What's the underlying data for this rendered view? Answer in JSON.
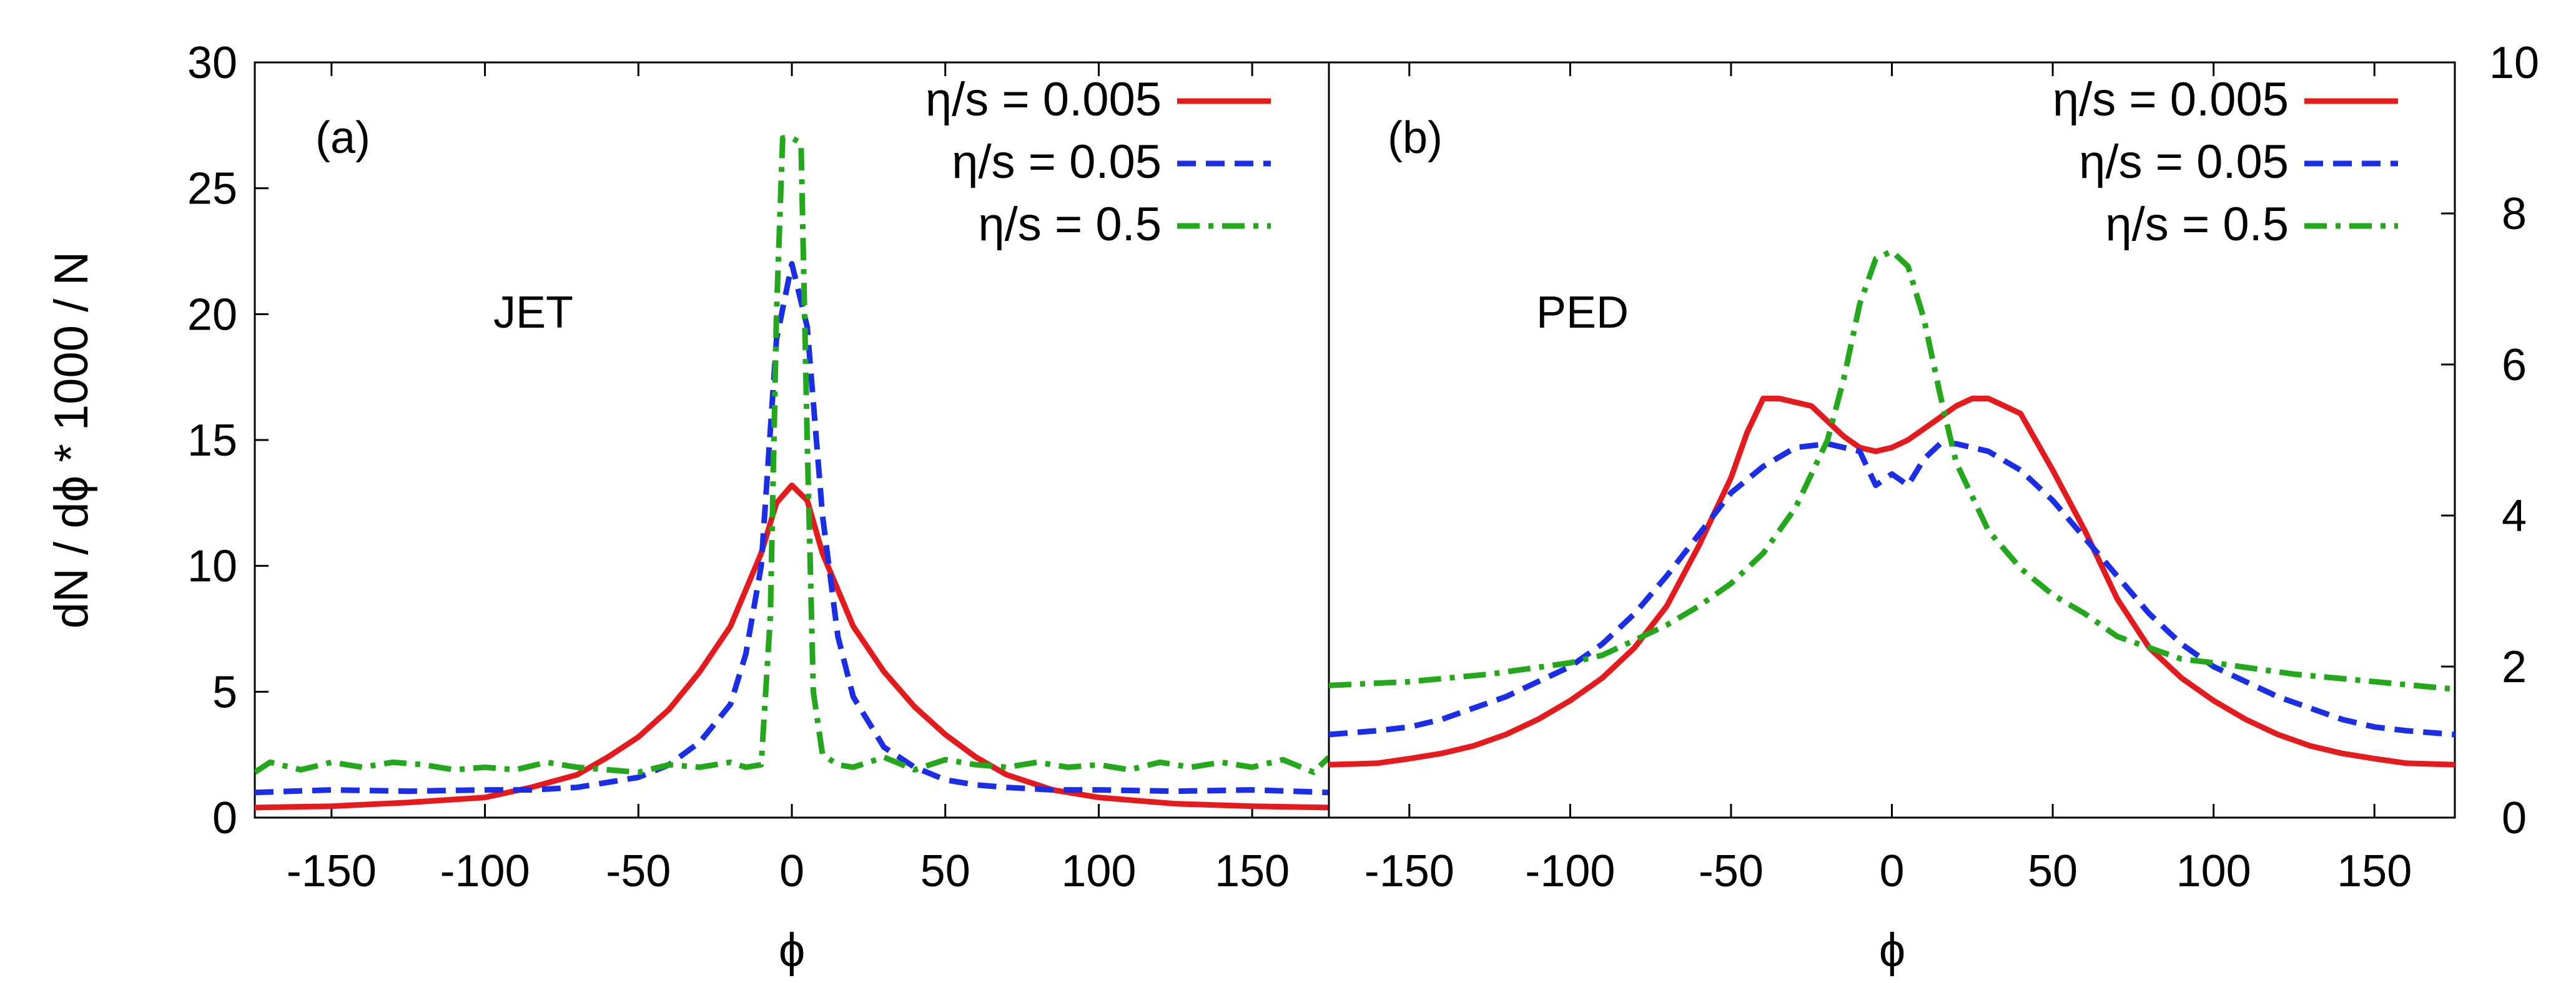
{
  "chart_data": [
    {
      "type": "line",
      "panel_label": "(a)",
      "annotation": "JET",
      "xlabel": "ϕ",
      "ylabel": "dN / dϕ * 1000 / N",
      "xlim": [
        -175,
        175
      ],
      "ylim": [
        0,
        30
      ],
      "xticks": [
        -150,
        -100,
        -50,
        0,
        50,
        100,
        150
      ],
      "xtick_labels": [
        "-150",
        "-100",
        "-50",
        "0",
        "50",
        "100",
        "150"
      ],
      "yticks": [
        0,
        5,
        10,
        15,
        20,
        25,
        30
      ],
      "ytick_labels": [
        "0",
        "5",
        "10",
        "15",
        "20",
        "25",
        "30"
      ],
      "legend_position": "top-right",
      "series": [
        {
          "name": "η/s = 0.005",
          "color": "#e41a1c",
          "dash": "solid",
          "x": [
            -175,
            -150,
            -125,
            -100,
            -85,
            -70,
            -60,
            -50,
            -40,
            -30,
            -20,
            -10,
            -5,
            0,
            5,
            10,
            20,
            30,
            40,
            50,
            60,
            70,
            85,
            100,
            125,
            150,
            175
          ],
          "y": [
            0.4,
            0.45,
            0.6,
            0.8,
            1.2,
            1.7,
            2.4,
            3.2,
            4.3,
            5.8,
            7.6,
            10.5,
            12.5,
            13.2,
            12.6,
            10.5,
            7.6,
            5.8,
            4.4,
            3.3,
            2.4,
            1.7,
            1.1,
            0.8,
            0.55,
            0.45,
            0.4
          ]
        },
        {
          "name": "η/s = 0.05",
          "color": "#1a2ee8",
          "dash": "dashed",
          "x": [
            -175,
            -150,
            -125,
            -100,
            -85,
            -70,
            -60,
            -50,
            -40,
            -30,
            -20,
            -15,
            -10,
            -5,
            0,
            5,
            10,
            15,
            20,
            30,
            40,
            50,
            60,
            70,
            85,
            100,
            125,
            150,
            175
          ],
          "y": [
            1.0,
            1.1,
            1.05,
            1.1,
            1.1,
            1.2,
            1.4,
            1.6,
            2.1,
            3.0,
            4.5,
            6.5,
            10.0,
            19.0,
            22.0,
            19.5,
            12.0,
            7.2,
            4.8,
            2.8,
            2.0,
            1.5,
            1.3,
            1.2,
            1.1,
            1.1,
            1.05,
            1.1,
            1.0
          ]
        },
        {
          "name": "η/s = 0.5",
          "color": "#22a81a",
          "dash": "dashdot",
          "x": [
            -175,
            -170,
            -160,
            -150,
            -140,
            -130,
            -120,
            -110,
            -100,
            -90,
            -80,
            -70,
            -60,
            -50,
            -40,
            -30,
            -20,
            -15,
            -10,
            -7,
            -5,
            -3,
            0,
            3,
            5,
            7,
            10,
            15,
            20,
            30,
            40,
            50,
            60,
            70,
            80,
            90,
            100,
            110,
            120,
            130,
            140,
            150,
            160,
            170,
            175
          ],
          "y": [
            1.8,
            2.2,
            1.9,
            2.2,
            2.0,
            2.2,
            2.1,
            1.9,
            2.0,
            1.9,
            2.2,
            2.0,
            1.9,
            1.8,
            2.1,
            2.0,
            2.2,
            2.0,
            2.1,
            8.0,
            20.0,
            27.0,
            27.0,
            26.8,
            15.0,
            5.0,
            2.5,
            2.1,
            2.0,
            2.4,
            1.9,
            2.3,
            2.1,
            2.0,
            2.2,
            2.0,
            2.1,
            1.9,
            2.2,
            2.0,
            2.2,
            2.0,
            2.3,
            1.8,
            2.4
          ]
        }
      ]
    },
    {
      "type": "line",
      "panel_label": "(b)",
      "annotation": "PED",
      "xlabel": "ϕ",
      "ylabel": "",
      "xlim": [
        -175,
        175
      ],
      "ylim": [
        0,
        10
      ],
      "xticks": [
        -150,
        -100,
        -50,
        0,
        50,
        100,
        150
      ],
      "xtick_labels": [
        "-150",
        "-100",
        "-50",
        "0",
        "50",
        "100",
        "150"
      ],
      "yticks": [
        0,
        2,
        4,
        6,
        8,
        10
      ],
      "ytick_labels": [
        "0",
        "2",
        "4",
        "6",
        "8",
        "10"
      ],
      "legend_position": "top-right",
      "series": [
        {
          "name": "η/s = 0.005",
          "color": "#e41a1c",
          "dash": "solid",
          "x": [
            -175,
            -160,
            -150,
            -140,
            -130,
            -120,
            -110,
            -100,
            -90,
            -80,
            -70,
            -60,
            -50,
            -45,
            -40,
            -35,
            -30,
            -25,
            -20,
            -15,
            -10,
            -5,
            0,
            5,
            10,
            15,
            20,
            25,
            30,
            35,
            40,
            50,
            60,
            70,
            80,
            90,
            100,
            110,
            120,
            130,
            140,
            150,
            160,
            175
          ],
          "y": [
            0.7,
            0.72,
            0.78,
            0.85,
            0.95,
            1.1,
            1.3,
            1.55,
            1.85,
            2.25,
            2.8,
            3.6,
            4.5,
            5.1,
            5.55,
            5.55,
            5.5,
            5.45,
            5.25,
            5.05,
            4.9,
            4.85,
            4.9,
            5.0,
            5.15,
            5.3,
            5.45,
            5.55,
            5.55,
            5.45,
            5.35,
            4.6,
            3.8,
            2.9,
            2.25,
            1.85,
            1.55,
            1.3,
            1.1,
            0.95,
            0.85,
            0.78,
            0.72,
            0.7
          ]
        },
        {
          "name": "η/s = 0.05",
          "color": "#1a2ee8",
          "dash": "dashed",
          "x": [
            -175,
            -160,
            -150,
            -140,
            -130,
            -120,
            -110,
            -100,
            -90,
            -80,
            -70,
            -60,
            -50,
            -40,
            -30,
            -20,
            -10,
            -5,
            0,
            5,
            10,
            15,
            20,
            30,
            40,
            50,
            60,
            70,
            80,
            90,
            100,
            110,
            120,
            130,
            140,
            150,
            160,
            175
          ],
          "y": [
            1.1,
            1.15,
            1.2,
            1.3,
            1.45,
            1.6,
            1.8,
            2.0,
            2.3,
            2.7,
            3.2,
            3.75,
            4.3,
            4.65,
            4.9,
            4.95,
            4.85,
            4.4,
            4.55,
            4.4,
            4.75,
            4.95,
            4.95,
            4.85,
            4.6,
            4.2,
            3.7,
            3.2,
            2.7,
            2.3,
            2.0,
            1.8,
            1.6,
            1.45,
            1.3,
            1.2,
            1.15,
            1.1
          ]
        },
        {
          "name": "η/s = 0.5",
          "color": "#22a81a",
          "dash": "dashdot",
          "x": [
            -175,
            -150,
            -125,
            -100,
            -90,
            -80,
            -70,
            -60,
            -50,
            -40,
            -30,
            -20,
            -15,
            -10,
            -5,
            0,
            5,
            10,
            15,
            20,
            30,
            40,
            50,
            60,
            70,
            80,
            90,
            100,
            125,
            150,
            175
          ],
          "y": [
            1.75,
            1.8,
            1.9,
            2.05,
            2.15,
            2.35,
            2.55,
            2.8,
            3.1,
            3.5,
            4.1,
            5.0,
            5.8,
            6.8,
            7.4,
            7.5,
            7.3,
            6.6,
            5.6,
            4.7,
            3.8,
            3.3,
            2.95,
            2.7,
            2.4,
            2.25,
            2.1,
            2.05,
            1.9,
            1.8,
            1.7
          ]
        }
      ]
    }
  ]
}
